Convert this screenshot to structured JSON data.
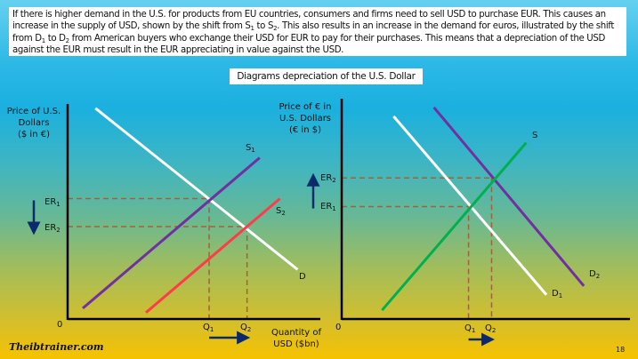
{
  "paragraph": {
    "p1": "If there is higher demand in the U.S. for products from EU countries, consumers and firms need to sell USD to purchase EUR. This causes an increase in the supply of USD, shown by the shift from S",
    "s1sub": "1",
    "p2": " to S",
    "s2sub": "2",
    "p3": ". This also results in an increase in the demand for euros, illustrated by the shift from D",
    "d1sub": "1",
    "p4": " to D",
    "d2sub": "2",
    "p5": " from American buyers who exchange their USD for EUR to pay for their purchases. This means that a depreciation of the USD against the EUR must result in the EUR appreciating in value against the USD."
  },
  "title": "Diagrams depreciation of the U.S. Dollar",
  "page_number": "18",
  "logo_text": "Theibtrainer.com",
  "colors": {
    "demand": "#ffffff",
    "s1": "#7030a0",
    "s2": "#ff3b4a",
    "d2": "#7030a0",
    "s": "#00b050",
    "dash": "#a0623a",
    "arrow": "#0b2a6b",
    "axis": "#000000"
  },
  "chart_data": [
    {
      "type": "line",
      "ylabel": [
        "Price of U.S.",
        "Dollars",
        "($ in €)"
      ],
      "xlabel": [
        "Quantity of",
        "USD ($bn)"
      ],
      "origin": "0",
      "xlim": [
        0,
        10
      ],
      "ylim": [
        0,
        10
      ],
      "series": [
        {
          "name": "D",
          "color": "#ffffff",
          "points": [
            [
              1.1,
              9.8
            ],
            [
              9.1,
              2.3
            ]
          ]
        },
        {
          "name": "S1",
          "color": "#7030a0",
          "points": [
            [
              0.6,
              0.5
            ],
            [
              7.6,
              7.5
            ]
          ]
        },
        {
          "name": "S2",
          "color": "#ff3b4a",
          "points": [
            [
              3.1,
              0.3
            ],
            [
              8.4,
              5.6
            ]
          ]
        }
      ],
      "equilibria": [
        {
          "price_label": "ER",
          "price_sub": "1",
          "qty_label": "Q",
          "qty_sub": "1",
          "x": 5.6,
          "y": 5.6
        },
        {
          "price_label": "ER",
          "price_sub": "2",
          "qty_label": "Q",
          "qty_sub": "2",
          "x": 7.1,
          "y": 4.3
        }
      ],
      "price_arrow": "down",
      "quantity_arrow": "right"
    },
    {
      "type": "line",
      "ylabel": [
        "Price of € in",
        "U.S. Dollars",
        "(€ in $)"
      ],
      "origin": "0",
      "xlim": [
        0,
        10
      ],
      "ylim": [
        0,
        10
      ],
      "series": [
        {
          "name": "D1",
          "color": "#ffffff",
          "points": [
            [
              1.8,
              9.2
            ],
            [
              7.1,
              1.1
            ]
          ]
        },
        {
          "name": "D2",
          "color": "#7030a0",
          "points": [
            [
              3.2,
              9.6
            ],
            [
              8.4,
              1.5
            ]
          ]
        },
        {
          "name": "S",
          "color": "#00b050",
          "points": [
            [
              1.4,
              0.4
            ],
            [
              6.4,
              8.0
            ]
          ]
        }
      ],
      "equilibria": [
        {
          "price_label": "ER",
          "price_sub": "1",
          "qty_label": "Q",
          "qty_sub": "1",
          "x": 4.4,
          "y": 5.1
        },
        {
          "price_label": "ER",
          "price_sub": "2",
          "qty_label": "Q",
          "qty_sub": "2",
          "x": 5.2,
          "y": 6.4
        }
      ],
      "price_arrow": "up",
      "quantity_arrow": "right"
    }
  ]
}
